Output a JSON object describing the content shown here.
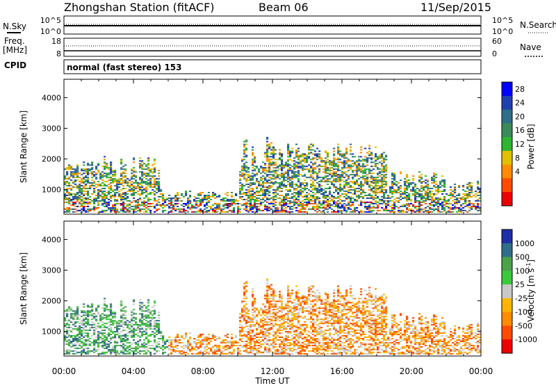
{
  "header": {
    "station": "Zhongshan Station (fitACF)",
    "beam": "Beam 06",
    "date": "11/Sep/2015"
  },
  "noise_panel": {
    "left_label": "N.Sky",
    "right_label": "N.Search",
    "left_ticks": [
      "10^5",
      "10^0"
    ],
    "right_ticks": [
      "10^5",
      "10^0"
    ]
  },
  "freq_panel": {
    "left_label_1": "Freq.",
    "left_label_2": "[MHz]",
    "right_label": "Nave",
    "left_ticks": [
      "18",
      "8"
    ],
    "right_ticks": [
      "60",
      "0"
    ]
  },
  "cpid": {
    "label": "CPID",
    "value": "normal (fast stereo) 153"
  },
  "colors": {
    "power": [
      "#0000ff",
      "#1f3fb0",
      "#2f6e8a",
      "#3a8a5a",
      "#2db52d",
      "#e0c000",
      "#ff8c00",
      "#ff4b00",
      "#ee0000"
    ],
    "velocity": [
      "#1e2ea8",
      "#2f6e8a",
      "#4aa24a",
      "#3cc83c",
      "#c8c8c8",
      "#ffb400",
      "#ff8c00",
      "#ff4b00",
      "#ee0000"
    ]
  },
  "chart_data": [
    {
      "type": "heatmap",
      "name": "power",
      "ylabel": "Slant Range [km]",
      "xlabel": "Time UT",
      "x_ticks": [
        "00:00",
        "04:00",
        "08:00",
        "12:00",
        "16:00",
        "20:00",
        "00:00"
      ],
      "y_ticks": [
        "1000",
        "2000",
        "3000",
        "4000"
      ],
      "ylim": [
        200,
        4600
      ],
      "xlim_hours": [
        0,
        24
      ],
      "colorbar_label": "Power [dB]",
      "colorbar_ticks": [
        "28",
        "24",
        "20",
        "16",
        "12",
        "8",
        "4"
      ]
    },
    {
      "type": "heatmap",
      "name": "velocity",
      "ylabel": "Slant Range [km]",
      "xlabel": "Time UT",
      "x_ticks": [
        "00:00",
        "04:00",
        "08:00",
        "12:00",
        "16:00",
        "20:00",
        "00:00"
      ],
      "y_ticks": [
        "1000",
        "2000",
        "3000",
        "4000"
      ],
      "ylim": [
        200,
        4600
      ],
      "xlim_hours": [
        0,
        24
      ],
      "colorbar_label": "Velocity [m s",
      "colorbar_label_sup": "-1",
      "colorbar_label_end": "]",
      "colorbar_ticks": [
        "1000",
        "500",
        "100",
        "25",
        "-25",
        "-100",
        "-500",
        "-1000"
      ]
    }
  ]
}
